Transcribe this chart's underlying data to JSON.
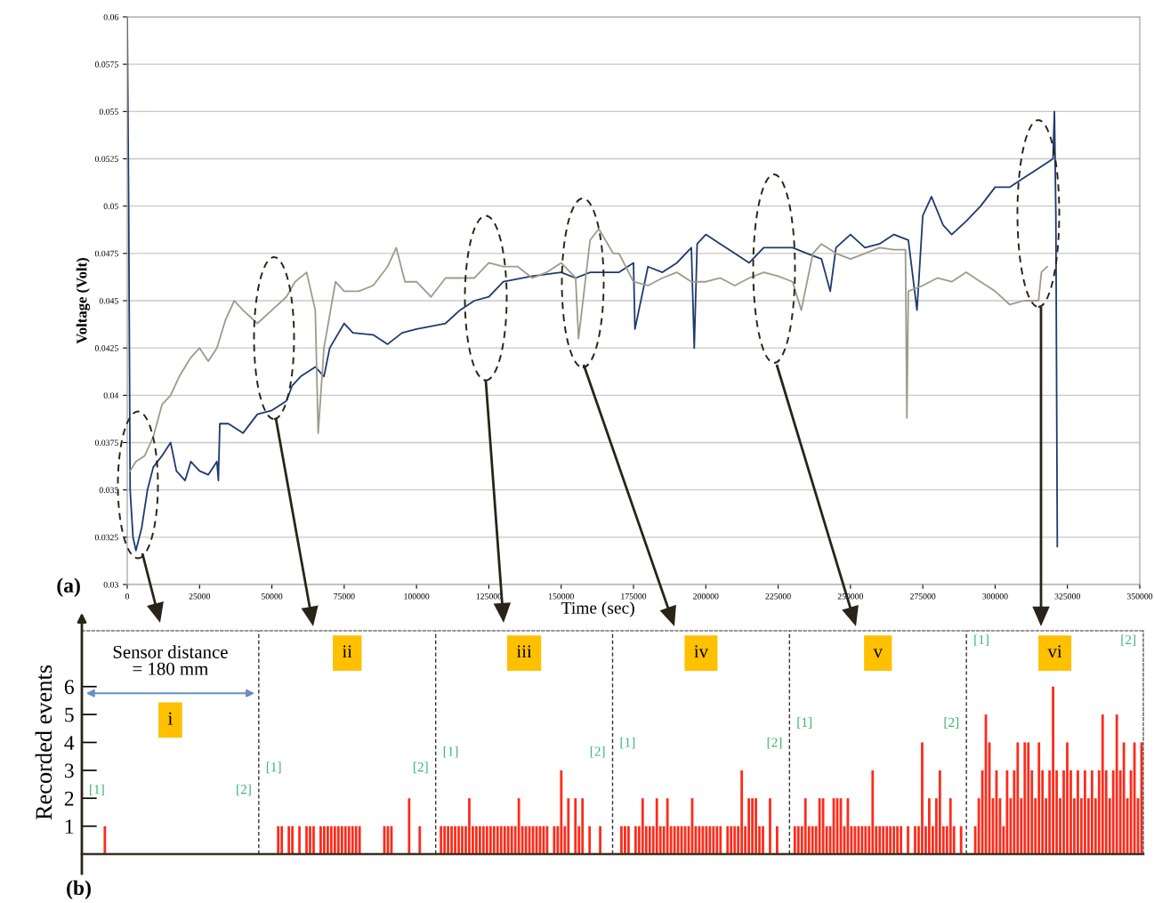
{
  "chart_data": [
    {
      "type": "line",
      "xlabel": "Time (sec)",
      "ylabel": "Voltage (Volt)",
      "xlim": [
        0,
        350000
      ],
      "xticks": [
        0,
        25000,
        50000,
        75000,
        100000,
        125000,
        150000,
        175000,
        200000,
        225000,
        250000,
        275000,
        300000,
        325000,
        350000
      ],
      "ylim": [
        0.03,
        0.06
      ],
      "yticks": [
        0.03,
        0.0325,
        0.035,
        0.0375,
        0.04,
        0.0425,
        0.045,
        0.0475,
        0.05,
        0.0525,
        0.055,
        0.0575,
        0.06
      ],
      "grid": "y",
      "annotations": [
        "(a)"
      ],
      "series": [
        {
          "color": "#1f3a6e",
          "x": [
            0,
            500,
            1000,
            2000,
            3000,
            5000,
            7000,
            9000,
            12000,
            15000,
            17000,
            20000,
            22000,
            25000,
            28000,
            31000,
            31500,
            32000,
            35000,
            40000,
            45000,
            50000,
            55000,
            57000,
            60000,
            65000,
            68000,
            70000,
            75000,
            78000,
            85000,
            90000,
            95000,
            100000,
            110000,
            115000,
            120000,
            125000,
            130000,
            140000,
            150000,
            155000,
            160000,
            165000,
            170000,
            175000,
            175500,
            180000,
            185000,
            190000,
            195000,
            196000,
            197000,
            200000,
            205000,
            210000,
            215000,
            220000,
            225000,
            230000,
            235000,
            240000,
            243000,
            245000,
            250000,
            255000,
            260000,
            265000,
            270000,
            273000,
            275000,
            278000,
            282000,
            285000,
            290000,
            295000,
            300000,
            305000,
            310000,
            315000,
            320000,
            320500,
            321000,
            321500
          ],
          "values": [
            0.06,
            0.05,
            0.035,
            0.0325,
            0.0318,
            0.033,
            0.035,
            0.0362,
            0.0368,
            0.0375,
            0.036,
            0.0355,
            0.0365,
            0.036,
            0.0358,
            0.0365,
            0.0355,
            0.0385,
            0.0385,
            0.038,
            0.039,
            0.0392,
            0.0397,
            0.0405,
            0.041,
            0.0415,
            0.041,
            0.0425,
            0.0438,
            0.0433,
            0.0432,
            0.0427,
            0.0433,
            0.0435,
            0.0438,
            0.0445,
            0.045,
            0.0452,
            0.046,
            0.0463,
            0.0465,
            0.0462,
            0.0465,
            0.0465,
            0.0465,
            0.047,
            0.0435,
            0.0468,
            0.0465,
            0.047,
            0.0478,
            0.0425,
            0.048,
            0.0485,
            0.048,
            0.0475,
            0.047,
            0.0478,
            0.0478,
            0.0478,
            0.0475,
            0.0472,
            0.0455,
            0.0478,
            0.0485,
            0.0478,
            0.048,
            0.0485,
            0.0482,
            0.0445,
            0.0495,
            0.0505,
            0.049,
            0.0485,
            0.0492,
            0.05,
            0.051,
            0.051,
            0.0515,
            0.052,
            0.0525,
            0.055,
            0.0495,
            0.032
          ]
        },
        {
          "color": "#a09a8a",
          "x": [
            1000,
            3000,
            6000,
            9000,
            12000,
            15000,
            18000,
            22000,
            25000,
            28000,
            31000,
            34000,
            37000,
            40000,
            45000,
            50000,
            55000,
            58000,
            62000,
            65000,
            66000,
            68000,
            72000,
            75000,
            80000,
            85000,
            90000,
            93000,
            96000,
            100000,
            105000,
            110000,
            115000,
            120000,
            125000,
            130000,
            135000,
            140000,
            145000,
            150000,
            155000,
            156000,
            160000,
            163000,
            168000,
            170000,
            175000,
            180000,
            185000,
            190000,
            195000,
            200000,
            205000,
            210000,
            215000,
            220000,
            225000,
            230000,
            233000,
            235000,
            237000,
            240000,
            245000,
            250000,
            255000,
            260000,
            265000,
            269000,
            269500,
            270000,
            275000,
            280000,
            285000,
            290000,
            295000,
            300000,
            305000,
            310000,
            315000,
            316000,
            318000
          ],
          "values": [
            0.036,
            0.0365,
            0.0368,
            0.0378,
            0.0395,
            0.04,
            0.041,
            0.042,
            0.0425,
            0.0418,
            0.0425,
            0.044,
            0.045,
            0.0445,
            0.0438,
            0.0445,
            0.0452,
            0.046,
            0.0465,
            0.0445,
            0.038,
            0.0425,
            0.046,
            0.0455,
            0.0455,
            0.0458,
            0.0468,
            0.0478,
            0.046,
            0.046,
            0.0452,
            0.0462,
            0.0462,
            0.0462,
            0.047,
            0.0468,
            0.0468,
            0.0462,
            0.0465,
            0.047,
            0.0462,
            0.043,
            0.0482,
            0.0488,
            0.0475,
            0.0475,
            0.046,
            0.0458,
            0.0462,
            0.0465,
            0.046,
            0.046,
            0.0462,
            0.0458,
            0.0462,
            0.0465,
            0.0463,
            0.046,
            0.0445,
            0.046,
            0.0475,
            0.048,
            0.0475,
            0.0472,
            0.0475,
            0.0478,
            0.0477,
            0.0477,
            0.0388,
            0.0455,
            0.0458,
            0.0462,
            0.046,
            0.0465,
            0.046,
            0.0455,
            0.0448,
            0.045,
            0.045,
            0.0465,
            0.0468
          ]
        }
      ]
    },
    {
      "type": "bar",
      "ylabel": "Recorded events",
      "ylim": [
        0,
        8
      ],
      "yticks": [
        1,
        2,
        3,
        4,
        5,
        6
      ],
      "annotations": [
        "i",
        "[1]",
        "[2]",
        "ii",
        "[1]",
        "[2]",
        "iii",
        "[1]",
        "[2]",
        "iv",
        "[1]",
        "[2]",
        "v",
        "[1]",
        "[2]",
        "vi",
        "[1]",
        "[2]",
        "Sensor distance\n= 180 mm",
        "(b)"
      ],
      "categories": [
        null,
        null,
        null,
        null,
        null,
        null,
        null,
        null,
        null,
        null,
        null,
        null,
        null,
        null,
        null,
        null,
        null,
        null,
        null,
        null,
        null,
        null,
        null,
        null,
        null,
        null,
        null,
        null,
        null,
        null,
        null,
        null,
        null,
        null,
        null,
        null,
        null,
        null,
        null,
        null,
        null,
        null,
        null,
        null,
        null,
        null,
        null,
        null,
        null,
        null,
        null,
        null,
        null,
        null,
        null,
        null,
        null,
        null,
        null,
        null,
        null,
        null,
        null,
        null,
        null,
        null,
        null,
        null,
        null,
        null,
        null,
        null,
        null,
        null,
        null,
        null,
        null,
        null,
        null,
        null,
        null,
        null,
        null,
        null,
        null,
        null,
        null,
        null,
        null,
        null,
        null,
        null,
        null,
        null,
        null,
        null,
        null,
        null,
        null,
        null,
        null,
        null,
        null,
        null,
        null,
        null,
        null,
        null,
        null,
        null,
        null,
        null,
        null,
        null,
        null,
        null,
        null,
        null,
        null,
        null,
        null,
        null,
        null,
        null,
        null,
        null,
        null,
        null,
        null,
        null,
        null,
        null,
        null,
        null,
        null,
        null,
        null,
        null,
        null,
        null,
        null,
        null,
        null,
        null,
        null,
        null,
        null,
        null,
        null,
        null,
        null,
        null,
        null,
        null,
        null,
        null,
        null,
        null,
        null,
        null,
        null,
        null,
        null,
        null,
        null,
        null,
        null,
        null,
        null,
        null,
        null,
        null,
        null,
        null,
        null,
        null,
        null,
        null,
        null,
        null,
        null,
        null,
        null,
        null,
        null,
        null,
        null,
        null,
        null,
        null,
        null,
        null,
        null,
        null,
        null,
        null,
        null,
        null,
        null,
        null,
        null,
        null,
        null,
        null,
        null,
        null,
        null,
        null,
        null,
        null,
        null,
        null,
        null,
        null,
        null,
        null,
        null,
        null,
        null,
        null,
        null,
        null,
        null,
        null,
        null,
        null,
        null,
        null,
        null,
        null,
        null,
        null,
        null,
        null,
        null,
        null,
        null,
        null,
        null,
        null,
        null,
        null,
        null,
        null,
        null,
        null,
        null,
        null,
        null,
        null,
        null,
        null,
        null,
        null,
        null,
        null,
        null,
        null,
        null,
        null,
        null,
        null,
        null,
        null,
        null,
        null,
        null,
        null,
        null,
        null,
        null,
        null,
        null,
        null,
        null,
        null,
        null,
        null,
        null,
        null,
        null,
        null,
        null,
        null,
        null,
        null,
        null,
        null,
        null,
        null,
        null,
        null,
        null,
        null,
        null,
        null,
        null,
        null,
        null,
        null
      ],
      "series": [
        {
          "color": "#ff2a1a",
          "values": [
            0,
            0,
            0,
            0,
            0,
            0,
            1,
            0,
            0,
            0,
            0,
            0,
            0,
            0,
            0,
            0,
            0,
            0,
            0,
            0,
            0,
            0,
            0,
            0,
            0,
            0,
            0,
            0,
            0,
            0,
            0,
            0,
            0,
            0,
            0,
            0,
            0,
            0,
            0,
            0,
            0,
            0,
            0,
            0,
            0,
            0,
            0,
            0,
            0,
            0,
            0,
            0,
            0,
            0,
            0,
            1,
            1,
            0,
            1,
            1,
            0,
            1,
            0,
            1,
            1,
            1,
            0,
            1,
            1,
            1,
            1,
            1,
            1,
            1,
            1,
            1,
            1,
            1,
            1,
            0,
            0,
            0,
            0,
            0,
            0,
            1,
            1,
            1,
            0,
            0,
            0,
            0,
            2,
            0,
            0,
            1,
            0,
            0,
            0,
            0,
            0,
            1,
            1,
            1,
            1,
            1,
            1,
            1,
            1,
            2,
            1,
            1,
            1,
            1,
            1,
            1,
            1,
            1,
            1,
            1,
            1,
            1,
            1,
            2,
            1,
            1,
            1,
            1,
            1,
            1,
            1,
            1,
            0,
            1,
            1,
            3,
            1,
            2,
            0,
            2,
            1,
            2,
            0,
            1,
            0,
            0,
            1,
            0,
            0,
            0,
            0,
            0,
            1,
            1,
            1,
            0,
            1,
            1,
            2,
            1,
            1,
            1,
            2,
            1,
            1,
            2,
            1,
            1,
            1,
            1,
            1,
            1,
            2,
            1,
            1,
            1,
            1,
            1,
            1,
            1,
            1,
            0,
            1,
            1,
            1,
            1,
            3,
            1,
            2,
            2,
            2,
            1,
            1,
            0,
            2,
            0,
            1,
            0,
            0,
            0,
            0,
            1,
            1,
            1,
            2,
            1,
            1,
            1,
            2,
            2,
            1,
            1,
            2,
            2,
            2,
            1,
            2,
            1,
            1,
            1,
            1,
            1,
            1,
            3,
            1,
            1,
            1,
            1,
            1,
            1,
            1,
            1,
            0,
            1,
            0,
            1,
            1,
            4,
            1,
            2,
            1,
            2,
            3,
            1,
            1,
            2,
            1,
            0,
            1,
            0,
            0,
            0,
            1,
            2,
            3,
            5,
            4,
            2,
            3,
            2,
            1,
            3,
            2,
            3,
            4,
            2,
            4,
            4,
            3,
            2,
            4,
            3,
            2,
            3,
            6,
            3,
            2,
            3,
            4,
            3,
            2,
            3,
            2,
            3,
            2,
            3,
            2,
            3,
            5,
            3,
            2,
            3,
            5,
            3,
            4,
            2,
            3,
            4,
            2,
            4
          ]
        }
      ]
    }
  ]
}
